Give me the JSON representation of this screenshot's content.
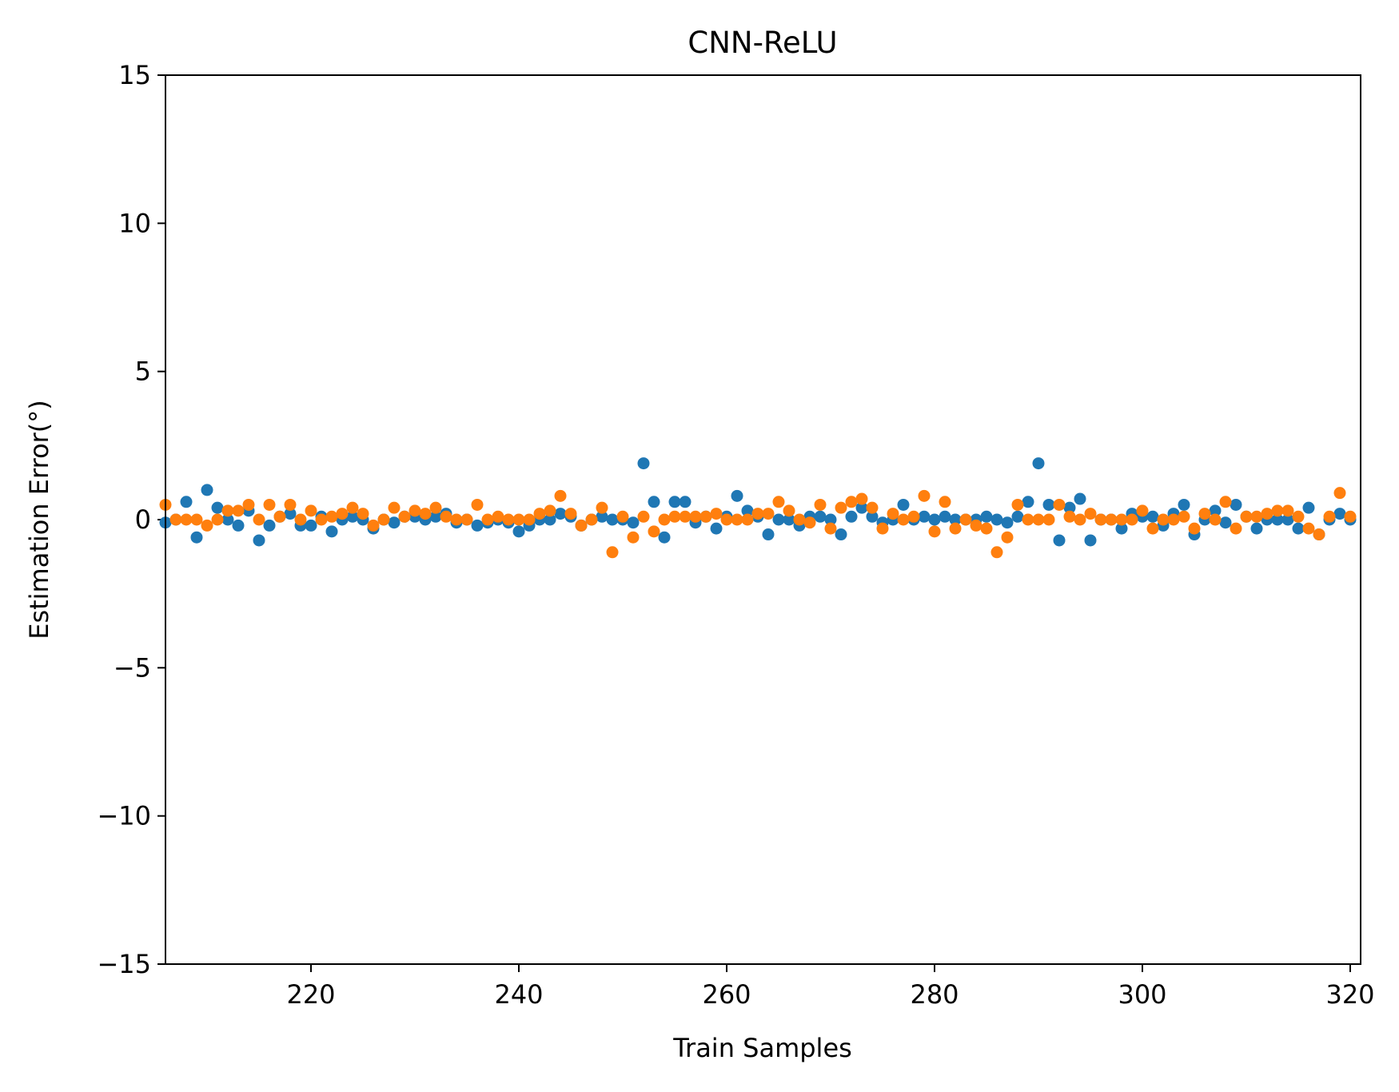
{
  "chart_data": {
    "type": "scatter",
    "title": "CNN-ReLU",
    "xlabel": "Train Samples",
    "ylabel": "Estimation Error(°)",
    "xlim": [
      206,
      321
    ],
    "ylim": [
      -15,
      15
    ],
    "xticks": [
      220,
      240,
      260,
      280,
      300,
      320
    ],
    "yticks": [
      -15,
      -10,
      -5,
      0,
      5,
      10,
      15
    ],
    "ytick_labels": [
      "−15",
      "−10",
      "−5",
      "0",
      "5",
      "10",
      "15"
    ],
    "grid": false,
    "legend": "none",
    "x": [
      206,
      207,
      208,
      209,
      210,
      211,
      212,
      213,
      214,
      215,
      216,
      217,
      218,
      219,
      220,
      221,
      222,
      223,
      224,
      225,
      226,
      227,
      228,
      229,
      230,
      231,
      232,
      233,
      234,
      235,
      236,
      237,
      238,
      239,
      240,
      241,
      242,
      243,
      244,
      245,
      246,
      247,
      248,
      249,
      250,
      251,
      252,
      253,
      254,
      255,
      256,
      257,
      258,
      259,
      260,
      261,
      262,
      263,
      264,
      265,
      266,
      267,
      268,
      269,
      270,
      271,
      272,
      273,
      274,
      275,
      276,
      277,
      278,
      279,
      280,
      281,
      282,
      283,
      284,
      285,
      286,
      287,
      288,
      289,
      290,
      291,
      292,
      293,
      294,
      295,
      296,
      297,
      298,
      299,
      300,
      301,
      302,
      303,
      304,
      305,
      306,
      307,
      308,
      309,
      310,
      311,
      312,
      313,
      314,
      315,
      316,
      317,
      318,
      319,
      320
    ],
    "series": [
      {
        "color": "#1f77b4",
        "values": [
          -0.1,
          0.0,
          0.6,
          -0.6,
          1.0,
          0.4,
          0.0,
          -0.2,
          0.3,
          -0.7,
          -0.2,
          0.1,
          0.2,
          -0.2,
          -0.2,
          0.1,
          -0.4,
          0.0,
          0.1,
          0.0,
          -0.3,
          0.0,
          -0.1,
          0.1,
          0.1,
          0.0,
          0.1,
          0.2,
          -0.1,
          0.0,
          -0.2,
          -0.1,
          0.0,
          -0.1,
          -0.4,
          -0.2,
          0.0,
          0.0,
          0.2,
          0.1,
          -0.2,
          0.0,
          0.1,
          0.0,
          0.0,
          -0.1,
          1.9,
          0.6,
          -0.6,
          0.6,
          0.6,
          -0.1,
          0.1,
          -0.3,
          0.1,
          0.8,
          0.3,
          0.1,
          -0.5,
          0.0,
          0.0,
          -0.2,
          0.1,
          0.1,
          0.0,
          -0.5,
          0.1,
          0.4,
          0.1,
          -0.1,
          0.0,
          0.5,
          0.0,
          0.1,
          0.0,
          0.1,
          0.0,
          0.0,
          0.0,
          0.1,
          0.0,
          -0.1,
          0.1,
          0.6,
          1.9,
          0.5,
          -0.7,
          0.4,
          0.7,
          -0.7,
          0.0,
          0.0,
          -0.3,
          0.2,
          0.1,
          0.1,
          -0.2,
          0.2,
          0.5,
          -0.5,
          0.0,
          0.3,
          -0.1,
          0.5,
          0.1,
          -0.3,
          0.0,
          0.0,
          0.0,
          -0.3,
          0.4,
          -0.5,
          0.0,
          0.2,
          0.0
        ]
      },
      {
        "color": "#ff7f0e",
        "values": [
          0.5,
          0.0,
          0.0,
          0.0,
          -0.2,
          0.0,
          0.3,
          0.3,
          0.5,
          0.0,
          0.5,
          0.1,
          0.5,
          0.0,
          0.3,
          0.0,
          0.1,
          0.2,
          0.4,
          0.2,
          -0.2,
          0.0,
          0.4,
          0.1,
          0.3,
          0.2,
          0.4,
          0.1,
          0.0,
          0.0,
          0.5,
          0.0,
          0.1,
          0.0,
          0.0,
          0.0,
          0.2,
          0.3,
          0.8,
          0.2,
          -0.2,
          0.0,
          0.4,
          -1.1,
          0.1,
          -0.6,
          0.1,
          -0.4,
          0.0,
          0.1,
          0.1,
          0.1,
          0.1,
          0.2,
          0.0,
          0.0,
          0.0,
          0.2,
          0.2,
          0.6,
          0.3,
          0.0,
          -0.1,
          0.5,
          -0.3,
          0.4,
          0.6,
          0.7,
          0.4,
          -0.3,
          0.2,
          0.0,
          0.1,
          0.8,
          -0.4,
          0.6,
          -0.3,
          0.0,
          -0.2,
          -0.3,
          -1.1,
          -0.6,
          0.5,
          0.0,
          0.0,
          0.0,
          0.5,
          0.1,
          0.0,
          0.2,
          0.0,
          0.0,
          0.0,
          0.0,
          0.3,
          -0.3,
          0.0,
          0.0,
          0.1,
          -0.3,
          0.2,
          0.0,
          0.6,
          -0.3,
          0.1,
          0.1,
          0.2,
          0.3,
          0.3,
          0.1,
          -0.3,
          -0.5,
          0.1,
          0.9,
          0.1
        ]
      }
    ]
  }
}
